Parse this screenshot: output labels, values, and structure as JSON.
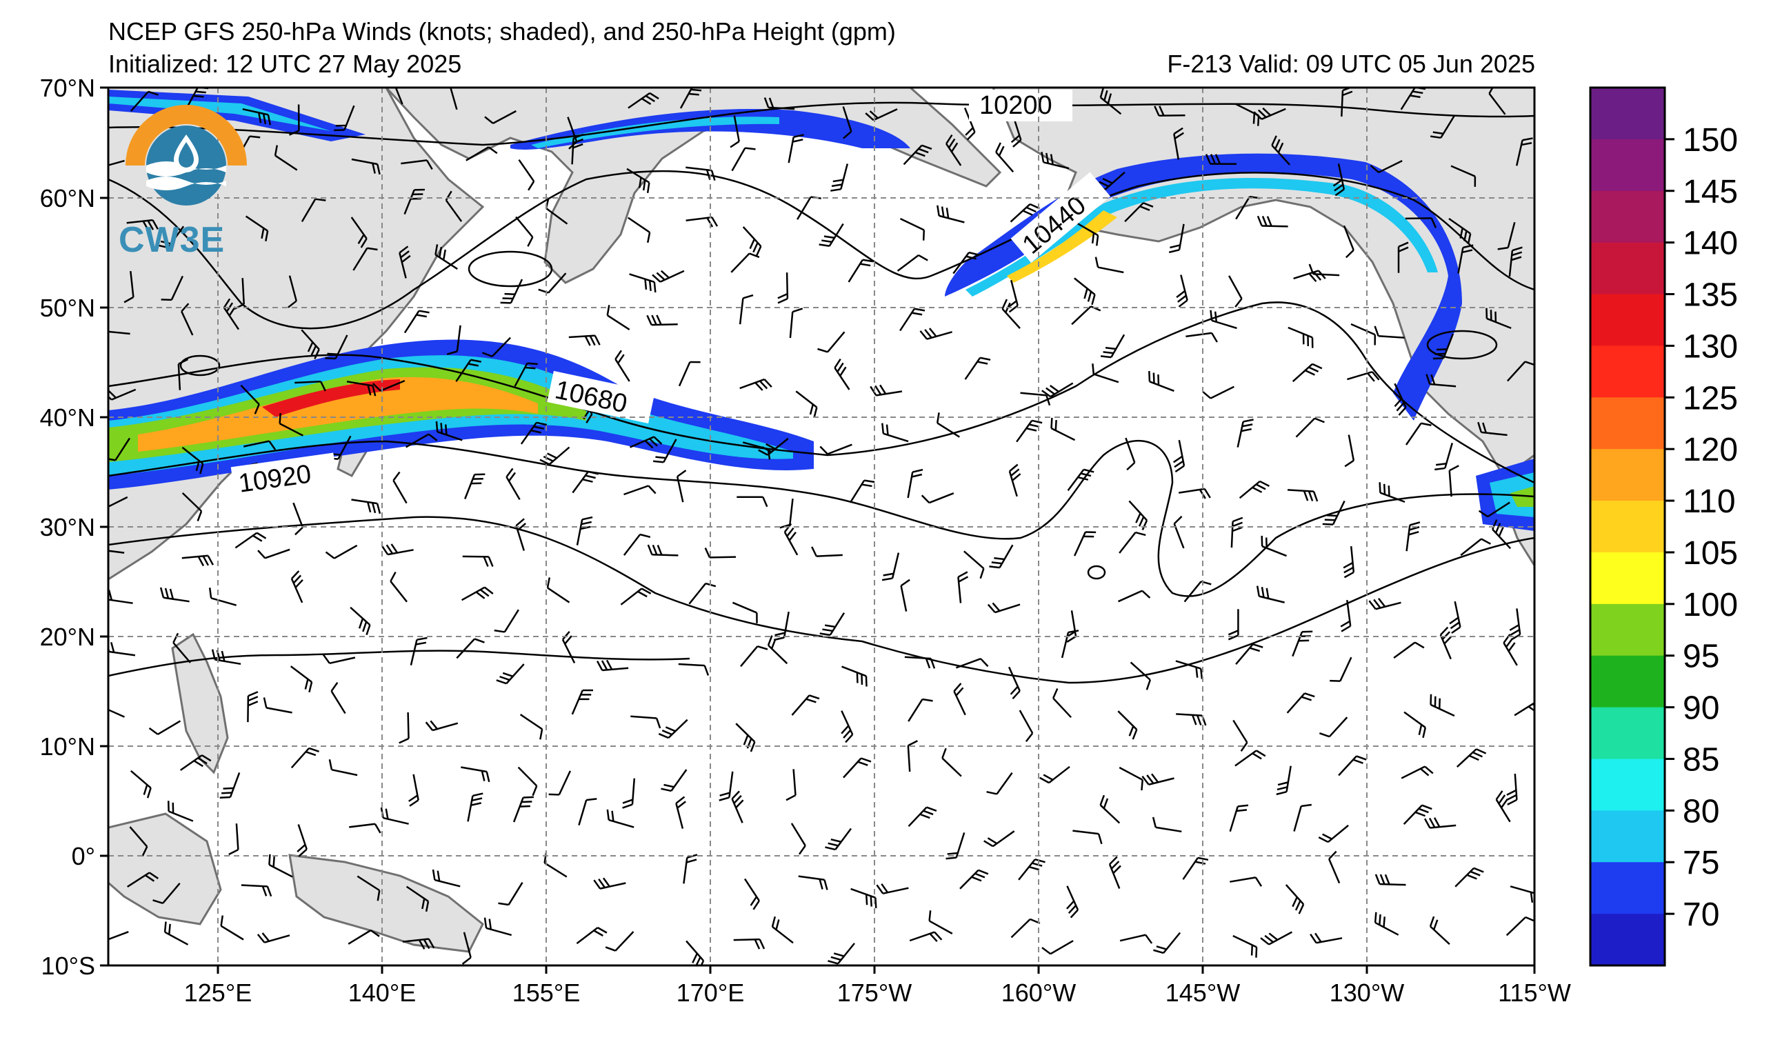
{
  "header": {
    "title_line1": "NCEP GFS 250-hPa Winds (knots; shaded), and 250-hPa Height (gpm)",
    "title_line2": "Initialized: 12 UTC 27 May 2025",
    "valid": "F-213  Valid: 09 UTC 05 Jun 2025"
  },
  "axes": {
    "lat_labels": [
      "70°N",
      "60°N",
      "50°N",
      "40°N",
      "30°N",
      "20°N",
      "10°N",
      "0°",
      "10°S"
    ],
    "lon_labels": [
      "125°E",
      "140°E",
      "155°E",
      "170°E",
      "175°W",
      "160°W",
      "145°W",
      "130°W",
      "115°W"
    ]
  },
  "contours": {
    "labels": [
      "10200",
      "10440",
      "10680",
      "10920"
    ]
  },
  "colorbar": {
    "ticks": [
      "150",
      "145",
      "140",
      "135",
      "130",
      "125",
      "120",
      "110",
      "105",
      "100",
      "95",
      "90",
      "85",
      "80",
      "75",
      "70"
    ],
    "colors": [
      "#6b1f86",
      "#8b1a7a",
      "#a8195e",
      "#c8163a",
      "#e8161c",
      "#ff2a1a",
      "#ff6a1a",
      "#ffa51e",
      "#ffd21e",
      "#ffff1e",
      "#7fd21e",
      "#1eb31e",
      "#1ee0a0",
      "#1ef0f0",
      "#1ec8f0",
      "#1e3cf0",
      "#1e1ec8"
    ]
  },
  "logo": {
    "text": "CW3E"
  }
}
